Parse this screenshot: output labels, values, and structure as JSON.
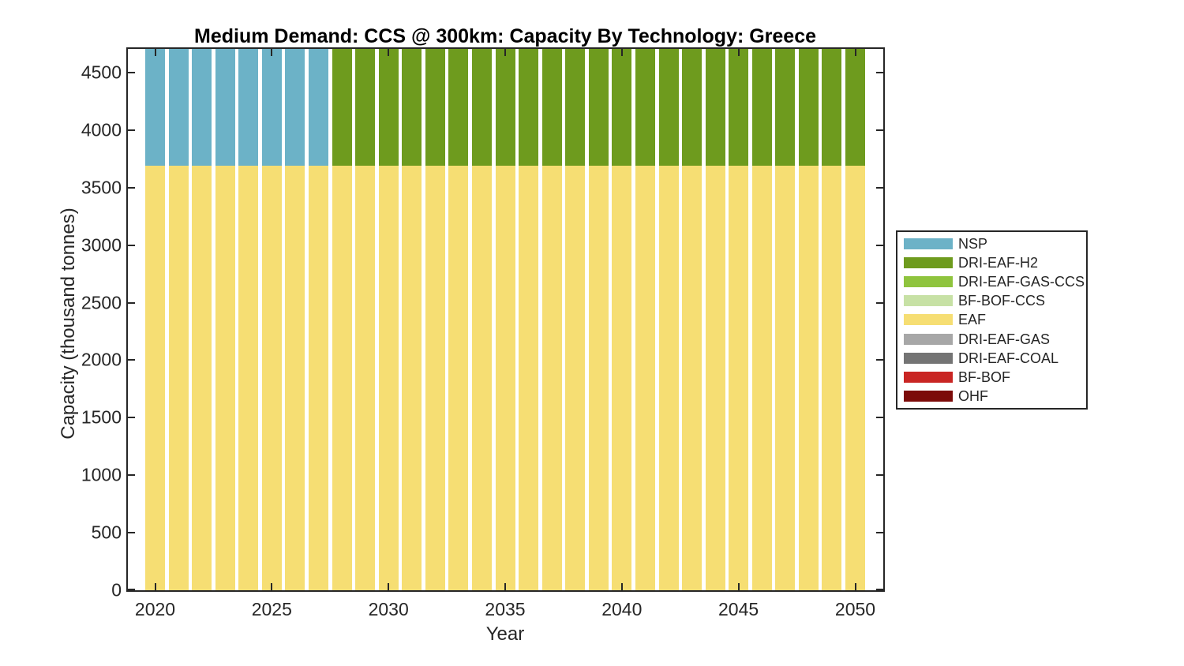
{
  "chart_data": {
    "type": "bar",
    "stacked": true,
    "title": "Medium Demand: CCS @ 300km: Capacity By Technology: Greece",
    "xlabel": "Year",
    "ylabel": "Capacity (thousand tonnes)",
    "x": [
      2020,
      2021,
      2022,
      2023,
      2024,
      2025,
      2026,
      2027,
      2028,
      2029,
      2030,
      2031,
      2032,
      2033,
      2034,
      2035,
      2036,
      2037,
      2038,
      2039,
      2040,
      2041,
      2042,
      2043,
      2044,
      2045,
      2046,
      2047,
      2048,
      2049,
      2050
    ],
    "xticks": [
      2020,
      2025,
      2030,
      2035,
      2040,
      2045,
      2050
    ],
    "yticks": [
      0,
      500,
      1000,
      1500,
      2000,
      2500,
      3000,
      3500,
      4000,
      4500
    ],
    "ylim": [
      0,
      4705
    ],
    "grid": false,
    "legend_position": "right-outside",
    "top_segments_clipped": true,
    "note": "Top stacked segments (NSP 2020-2027, DRI-EAF-H2 2028-2050) are clipped at the axis top (~4705); EAF base is ~3690 every year.",
    "stack_order_bottom_to_top": [
      "OHF",
      "BF-BOF",
      "DRI-EAF-COAL",
      "DRI-EAF-GAS",
      "EAF",
      "BF-BOF-CCS",
      "DRI-EAF-GAS-CCS",
      "DRI-EAF-H2",
      "NSP"
    ],
    "series": [
      {
        "name": "NSP",
        "color": "#6CB2C7",
        "values": [
          1015,
          1015,
          1015,
          1015,
          1015,
          1015,
          1015,
          1015,
          0,
          0,
          0,
          0,
          0,
          0,
          0,
          0,
          0,
          0,
          0,
          0,
          0,
          0,
          0,
          0,
          0,
          0,
          0,
          0,
          0,
          0,
          0
        ]
      },
      {
        "name": "DRI-EAF-H2",
        "color": "#6E9B1E",
        "values": [
          0,
          0,
          0,
          0,
          0,
          0,
          0,
          0,
          1015,
          1015,
          1015,
          1015,
          1015,
          1015,
          1015,
          1015,
          1015,
          1015,
          1015,
          1015,
          1015,
          1015,
          1015,
          1015,
          1015,
          1015,
          1015,
          1015,
          1015,
          1015,
          1015
        ]
      },
      {
        "name": "DRI-EAF-GAS-CCS",
        "color": "#8FC43E",
        "values": [
          0,
          0,
          0,
          0,
          0,
          0,
          0,
          0,
          0,
          0,
          0,
          0,
          0,
          0,
          0,
          0,
          0,
          0,
          0,
          0,
          0,
          0,
          0,
          0,
          0,
          0,
          0,
          0,
          0,
          0,
          0
        ]
      },
      {
        "name": "BF-BOF-CCS",
        "color": "#C7E1A5",
        "values": [
          0,
          0,
          0,
          0,
          0,
          0,
          0,
          0,
          0,
          0,
          0,
          0,
          0,
          0,
          0,
          0,
          0,
          0,
          0,
          0,
          0,
          0,
          0,
          0,
          0,
          0,
          0,
          0,
          0,
          0,
          0
        ]
      },
      {
        "name": "EAF",
        "color": "#F6DE73",
        "values": [
          3690,
          3690,
          3690,
          3690,
          3690,
          3690,
          3690,
          3690,
          3690,
          3690,
          3690,
          3690,
          3690,
          3690,
          3690,
          3690,
          3690,
          3690,
          3690,
          3690,
          3690,
          3690,
          3690,
          3690,
          3690,
          3690,
          3690,
          3690,
          3690,
          3690,
          3690
        ]
      },
      {
        "name": "DRI-EAF-GAS",
        "color": "#A7A7A7",
        "values": [
          0,
          0,
          0,
          0,
          0,
          0,
          0,
          0,
          0,
          0,
          0,
          0,
          0,
          0,
          0,
          0,
          0,
          0,
          0,
          0,
          0,
          0,
          0,
          0,
          0,
          0,
          0,
          0,
          0,
          0,
          0
        ]
      },
      {
        "name": "DRI-EAF-COAL",
        "color": "#747474",
        "values": [
          0,
          0,
          0,
          0,
          0,
          0,
          0,
          0,
          0,
          0,
          0,
          0,
          0,
          0,
          0,
          0,
          0,
          0,
          0,
          0,
          0,
          0,
          0,
          0,
          0,
          0,
          0,
          0,
          0,
          0,
          0
        ]
      },
      {
        "name": "BF-BOF",
        "color": "#C92523",
        "values": [
          0,
          0,
          0,
          0,
          0,
          0,
          0,
          0,
          0,
          0,
          0,
          0,
          0,
          0,
          0,
          0,
          0,
          0,
          0,
          0,
          0,
          0,
          0,
          0,
          0,
          0,
          0,
          0,
          0,
          0,
          0
        ]
      },
      {
        "name": "OHF",
        "color": "#7C0B09",
        "values": [
          0,
          0,
          0,
          0,
          0,
          0,
          0,
          0,
          0,
          0,
          0,
          0,
          0,
          0,
          0,
          0,
          0,
          0,
          0,
          0,
          0,
          0,
          0,
          0,
          0,
          0,
          0,
          0,
          0,
          0,
          0
        ]
      }
    ]
  }
}
